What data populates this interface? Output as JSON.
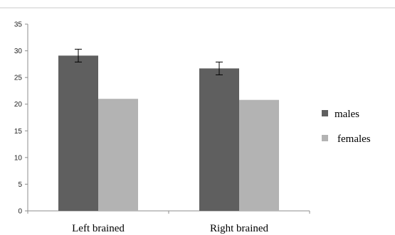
{
  "chart_data": {
    "type": "bar",
    "categories": [
      "Left brained",
      "Right brained"
    ],
    "series": [
      {
        "name": "males",
        "values": [
          29.1,
          26.7
        ],
        "error": [
          1.2,
          1.2
        ],
        "color": "#5f5f5f"
      },
      {
        "name": "females",
        "values": [
          21.0,
          20.8
        ],
        "color": "#b3b3b3"
      }
    ],
    "ylim": [
      0,
      35
    ],
    "yticks": [
      "0",
      "5",
      "10",
      "15",
      "20",
      "25",
      "30",
      "35"
    ],
    "ytick_values": [
      0,
      5,
      10,
      15,
      20,
      25,
      30,
      35
    ],
    "title": "",
    "xlabel": "",
    "ylabel": "",
    "grid": false,
    "legend_position": "right"
  }
}
